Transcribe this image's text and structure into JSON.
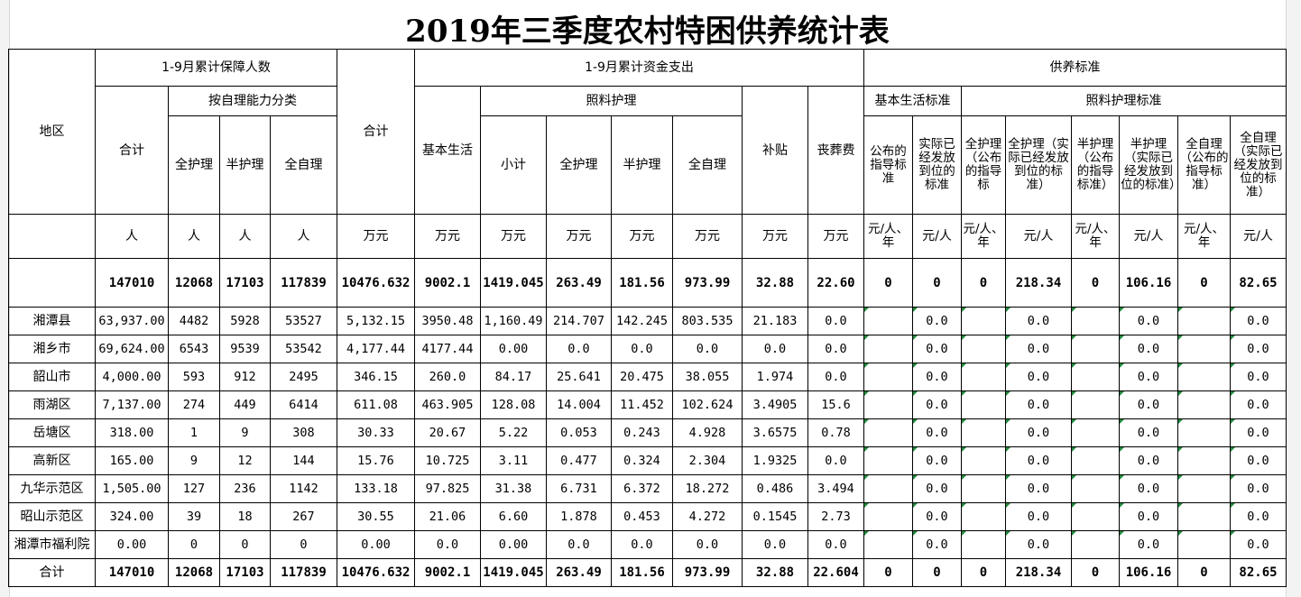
{
  "title": "2019年三季度农村特困供养统计表",
  "headers": {
    "region": "地区",
    "group_persons": "1-9月累计保障人数",
    "group_funds": "1-9月累计资金支出",
    "group_standard": "供养标准",
    "persons_total": "合计",
    "by_ability": "按自理能力分类",
    "full_care": "全护理",
    "half_care": "半护理",
    "self_care": "全自理",
    "funds_total": "合计",
    "basic_life": "基本生活",
    "care": "照料护理",
    "subtotal": "小计",
    "care_full": "全护理",
    "care_half": "半护理",
    "care_self": "全自理",
    "subsidy": "补贴",
    "funeral": "丧葬费",
    "basic_std": "基本生活标准",
    "care_std": "照料护理标准",
    "std_basic_published": "公布的指导标准",
    "std_basic_actual": "实际已经发放到位的标准",
    "std_full_published": "全护理（公布的指导标",
    "std_full_actual": "全护理（实际已经发放到位的标准）",
    "std_half_published": "半护理（公布的指导标准）",
    "std_half_actual": "半护理（实际已经发放到位的标准）",
    "std_self_published": "全自理（公布的指导标准）",
    "std_self_actual": "全自理（实际已经发放到位的标准）"
  },
  "units": [
    "人",
    "人",
    "人",
    "人",
    "万元",
    "万元",
    "万元",
    "万元",
    "万元",
    "万元",
    "万元",
    "万元",
    "元/人、年",
    "元/人",
    "元/人、年",
    "元/人",
    "元/人、年",
    "元/人",
    "元/人、年",
    "元/人"
  ],
  "summary_row": [
    "147010",
    "12068",
    "17103",
    "117839",
    "10476.632",
    "9002.1",
    "1419.045",
    "263.49",
    "181.56",
    "973.99",
    "32.88",
    "22.60",
    "0",
    "0",
    "0",
    "218.34",
    "0",
    "106.16",
    "0",
    "82.65"
  ],
  "rows": [
    {
      "region": "湘潭县",
      "v": [
        "63,937.00",
        "4482",
        "5928",
        "53527",
        "5,132.15",
        "3950.48",
        "1,160.49",
        "214.707",
        "142.245",
        "803.535",
        "21.183",
        "0.0",
        "",
        "0.0",
        "",
        "0.0",
        "",
        "0.0",
        "",
        "0.0"
      ]
    },
    {
      "region": "湘乡市",
      "v": [
        "69,624.00",
        "6543",
        "9539",
        "53542",
        "4,177.44",
        "4177.44",
        "0.00",
        "0.0",
        "0.0",
        "0.0",
        "0.0",
        "0.0",
        "",
        "0.0",
        "",
        "0.0",
        "",
        "0.0",
        "",
        "0.0"
      ]
    },
    {
      "region": "韶山市",
      "v": [
        "4,000.00",
        "593",
        "912",
        "2495",
        "346.15",
        "260.0",
        "84.17",
        "25.641",
        "20.475",
        "38.055",
        "1.974",
        "0.0",
        "",
        "0.0",
        "",
        "0.0",
        "",
        "0.0",
        "",
        "0.0"
      ]
    },
    {
      "region": "雨湖区",
      "v": [
        "7,137.00",
        "274",
        "449",
        "6414",
        "611.08",
        "463.905",
        "128.08",
        "14.004",
        "11.452",
        "102.624",
        "3.4905",
        "15.6",
        "",
        "0.0",
        "",
        "0.0",
        "",
        "0.0",
        "",
        "0.0"
      ]
    },
    {
      "region": "岳塘区",
      "v": [
        "318.00",
        "1",
        "9",
        "308",
        "30.33",
        "20.67",
        "5.22",
        "0.053",
        "0.243",
        "4.928",
        "3.6575",
        "0.78",
        "",
        "0.0",
        "",
        "0.0",
        "",
        "0.0",
        "",
        "0.0"
      ]
    },
    {
      "region": "高新区",
      "v": [
        "165.00",
        "9",
        "12",
        "144",
        "15.76",
        "10.725",
        "3.11",
        "0.477",
        "0.324",
        "2.304",
        "1.9325",
        "0.0",
        "",
        "0.0",
        "",
        "0.0",
        "",
        "0.0",
        "",
        "0.0"
      ]
    },
    {
      "region": "九华示范区",
      "v": [
        "1,505.00",
        "127",
        "236",
        "1142",
        "133.18",
        "97.825",
        "31.38",
        "6.731",
        "6.372",
        "18.272",
        "0.486",
        "3.494",
        "",
        "0.0",
        "",
        "0.0",
        "",
        "0.0",
        "",
        "0.0"
      ]
    },
    {
      "region": "昭山示范区",
      "v": [
        "324.00",
        "39",
        "18",
        "267",
        "30.55",
        "21.06",
        "6.60",
        "1.878",
        "0.453",
        "4.272",
        "0.1545",
        "2.73",
        "",
        "0.0",
        "",
        "0.0",
        "",
        "0.0",
        "",
        "0.0"
      ]
    },
    {
      "region": "湘潭市福利院",
      "v": [
        "0.00",
        "0",
        "0",
        "0",
        "0.00",
        "0.0",
        "0.00",
        "0.0",
        "0.0",
        "0.0",
        "0.0",
        "0.0",
        "",
        "0.0",
        "",
        "0.0",
        "",
        "0.0",
        "",
        "0.0"
      ]
    }
  ],
  "total_row": {
    "region": "合计",
    "v": [
      "147010",
      "12068",
      "17103",
      "117839",
      "10476.632",
      "9002.1",
      "1419.045",
      "263.49",
      "181.56",
      "973.99",
      "32.88",
      "22.604",
      "0",
      "0",
      "0",
      "218.34",
      "0",
      "106.16",
      "0",
      "82.65"
    ]
  }
}
